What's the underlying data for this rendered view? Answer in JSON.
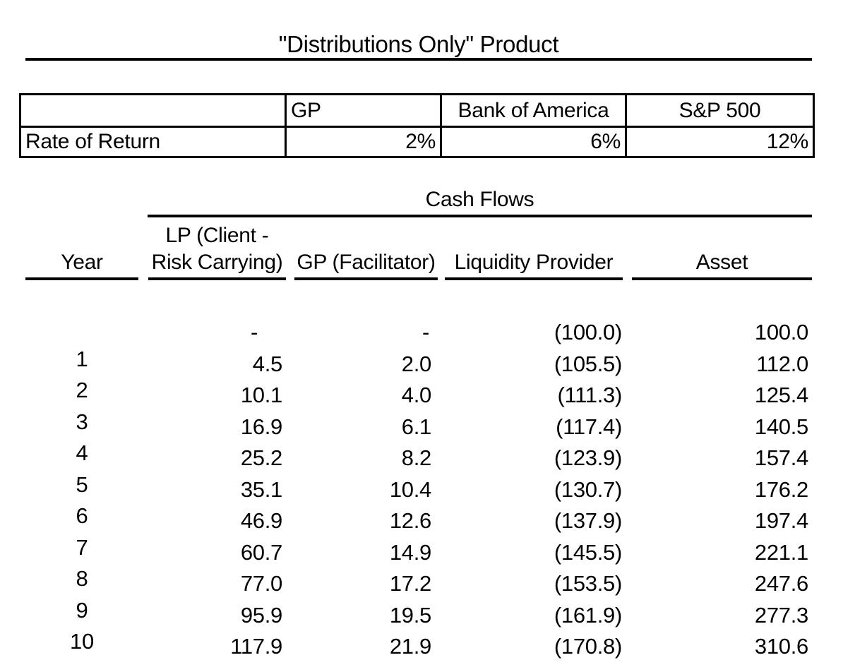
{
  "title": "\"Distributions Only\" Product",
  "rate_table": {
    "corner": "",
    "columns": [
      "GP",
      "Bank of America",
      "S&P 500"
    ],
    "row_label": "Rate of Return",
    "values": [
      "2%",
      "6%",
      "12%"
    ]
  },
  "cash_flows": {
    "title": "Cash Flows",
    "headers": {
      "year": "Year",
      "lp_line1": "LP (Client -",
      "lp_line2": "Risk Carrying)",
      "gp": "GP (Facilitator)",
      "liquidity": "Liquidity Provider",
      "asset": "Asset"
    },
    "rows": [
      {
        "year": "",
        "lp": "-",
        "gp": "-",
        "liquidity": "(100.0)",
        "asset": "100.0"
      },
      {
        "year": "1",
        "lp": "4.5",
        "gp": "2.0",
        "liquidity": "(105.5)",
        "asset": "112.0"
      },
      {
        "year": "2",
        "lp": "10.1",
        "gp": "4.0",
        "liquidity": "(111.3)",
        "asset": "125.4"
      },
      {
        "year": "3",
        "lp": "16.9",
        "gp": "6.1",
        "liquidity": "(117.4)",
        "asset": "140.5"
      },
      {
        "year": "4",
        "lp": "25.2",
        "gp": "8.2",
        "liquidity": "(123.9)",
        "asset": "157.4"
      },
      {
        "year": "5",
        "lp": "35.1",
        "gp": "10.4",
        "liquidity": "(130.7)",
        "asset": "176.2"
      },
      {
        "year": "6",
        "lp": "46.9",
        "gp": "12.6",
        "liquidity": "(137.9)",
        "asset": "197.4"
      },
      {
        "year": "7",
        "lp": "60.7",
        "gp": "14.9",
        "liquidity": "(145.5)",
        "asset": "221.1"
      },
      {
        "year": "8",
        "lp": "77.0",
        "gp": "17.2",
        "liquidity": "(153.5)",
        "asset": "247.6"
      },
      {
        "year": "9",
        "lp": "95.9",
        "gp": "19.5",
        "liquidity": "(161.9)",
        "asset": "277.3"
      },
      {
        "year": "10",
        "lp": "117.9",
        "gp": "21.9",
        "liquidity": "(170.8)",
        "asset": "310.6"
      }
    ]
  },
  "colors": {
    "text": "#000000",
    "background": "#ffffff",
    "rule": "#000000"
  }
}
